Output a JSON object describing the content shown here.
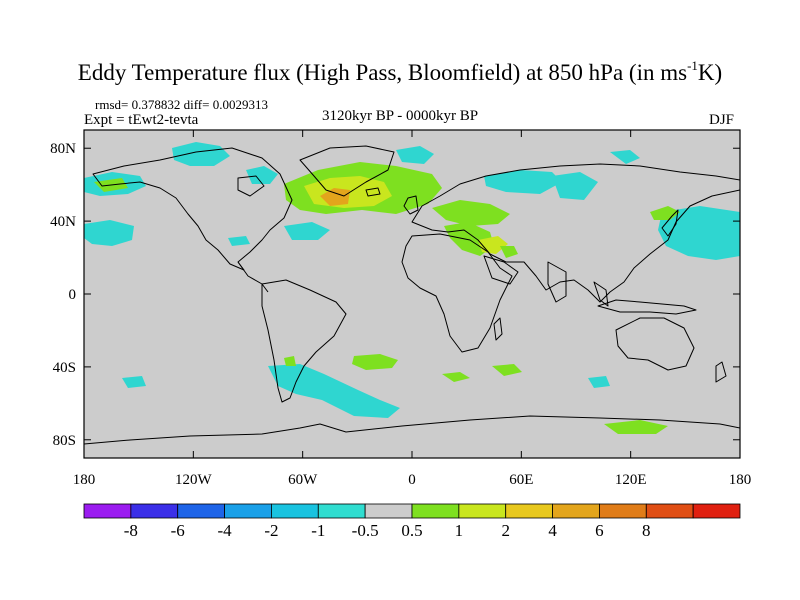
{
  "title": {
    "main": "Eddy Temperature flux (High Pass, Bloomfield) at 850 hPa (in ms",
    "exponent": "-1",
    "tail": "K)"
  },
  "stats": "rmsd= 0.378832 diff= 0.0029313",
  "expt": "Expt = tEwt2-tevta",
  "period": "3120kyr BP - 0000kyr BP",
  "season": "DJF",
  "map": {
    "projection": "cylindrical equidistant",
    "background_color": "#cccccc",
    "lon_ticks": [
      "180",
      "120W",
      "60W",
      "0",
      "60E",
      "120E",
      "180"
    ],
    "lat_ticks": [
      "80N",
      "40N",
      "0",
      "40S",
      "80S"
    ]
  },
  "colorbar": {
    "colors": [
      "#9b1cf0",
      "#3b2fe8",
      "#1e64e8",
      "#1aa0e8",
      "#19c3e0",
      "#30ddd0",
      "#cccccc",
      "#7ee020",
      "#c9e61e",
      "#e8c81e",
      "#e3a51c",
      "#e07c18",
      "#e04e14",
      "#e02010"
    ],
    "labels": [
      "-8",
      "-6",
      "-4",
      "-2",
      "-1",
      "-0.5",
      "0.5",
      "1",
      "2",
      "4",
      "6",
      "8"
    ]
  }
}
